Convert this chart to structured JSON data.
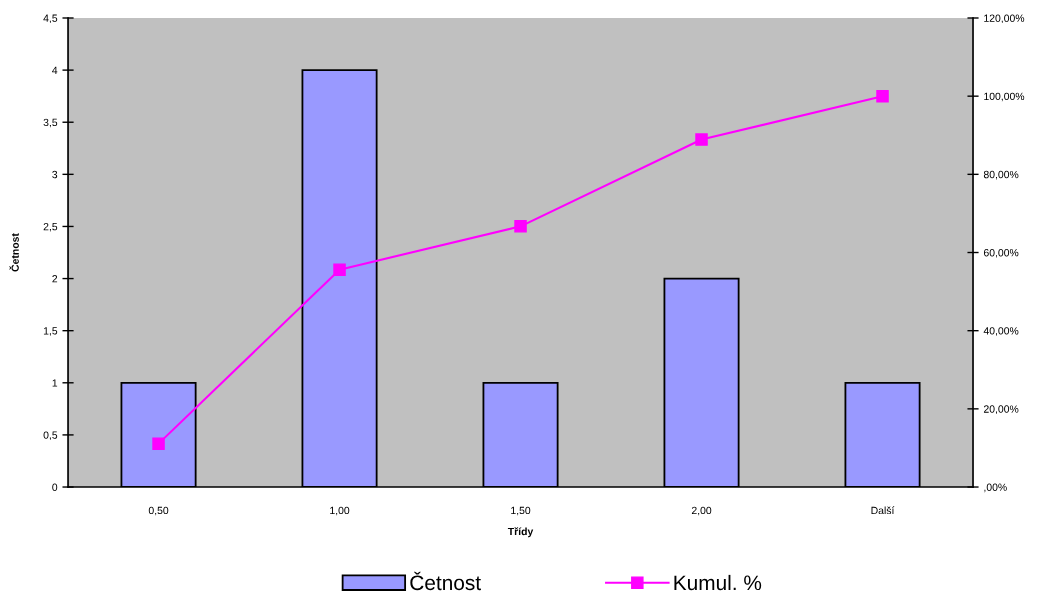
{
  "chart_data": {
    "type": "bar",
    "xlabel": "Třídy",
    "ylabel": "Četnost",
    "categories": [
      "0,50",
      "1,00",
      "1,50",
      "2,00",
      "Další"
    ],
    "series": [
      {
        "name": "Četnost",
        "color": "#9999ff",
        "values": [
          1,
          4,
          1,
          2,
          1
        ]
      },
      {
        "name": "Kumul. %",
        "type": "line",
        "axis": "y2",
        "color": "#ff00ff",
        "marker": "square",
        "line_style": "solid",
        "values": [
          11.1,
          55.6,
          66.7,
          88.9,
          100
        ]
      }
    ],
    "ylim": [
      0,
      4.5
    ],
    "yticks": [
      0,
      {
        "value": 0.5,
        "label": "0,5"
      },
      1,
      {
        "value": 1.5,
        "label": "1,5"
      },
      2,
      {
        "value": 2.5,
        "label": "2,5"
      },
      3,
      {
        "value": 3.5,
        "label": "3,5"
      },
      4,
      {
        "value": 4.5,
        "label": "4,5"
      }
    ],
    "y2lim": [
      0,
      120
    ],
    "y2ticks": [
      {
        "value": 0,
        "label": ",00%"
      },
      {
        "value": 20,
        "label": "20,00%"
      },
      {
        "value": 40,
        "label": "40,00%"
      },
      {
        "value": 60,
        "label": "60,00%"
      },
      {
        "value": 80,
        "label": "80,00%"
      },
      {
        "value": 100,
        "label": "100,00%"
      },
      {
        "value": 120,
        "label": "120,00%"
      }
    ],
    "grid": false,
    "legend": "bottom"
  }
}
